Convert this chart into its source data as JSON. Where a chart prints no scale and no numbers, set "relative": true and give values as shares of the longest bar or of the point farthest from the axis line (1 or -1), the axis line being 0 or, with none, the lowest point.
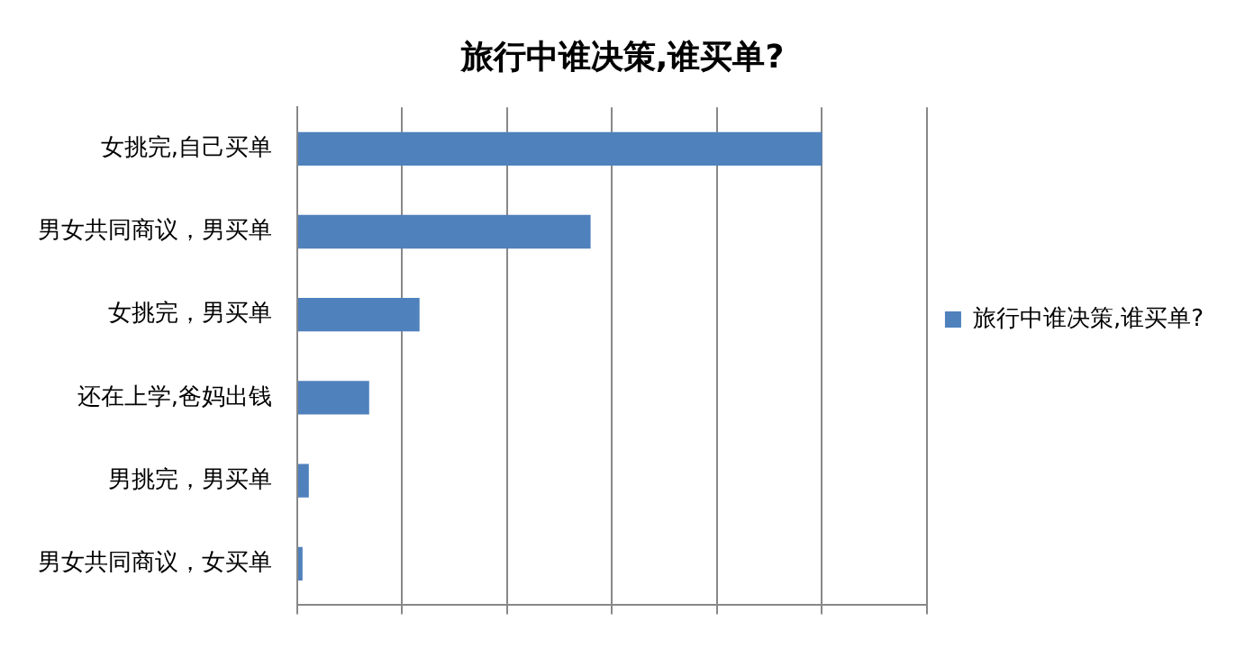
{
  "chart_data": {
    "type": "bar",
    "orientation": "horizontal",
    "relative": true,
    "title": "旅行中谁决策,谁买单?",
    "categories": [
      "女挑完,自己买单",
      "男女共同商议，男买单",
      "女挑完，男买单",
      "还在上学,爸妈出钱",
      "男挑完，男买单",
      "男女共同商议，女买单"
    ],
    "series": [
      {
        "name": "旅行中谁决策,谁买单?",
        "color": "#4f81bd",
        "values": [
          1,
          0.559,
          0.233,
          0.137,
          0.022,
          0.01
        ]
      }
    ],
    "grid": "x",
    "legend": "right"
  }
}
